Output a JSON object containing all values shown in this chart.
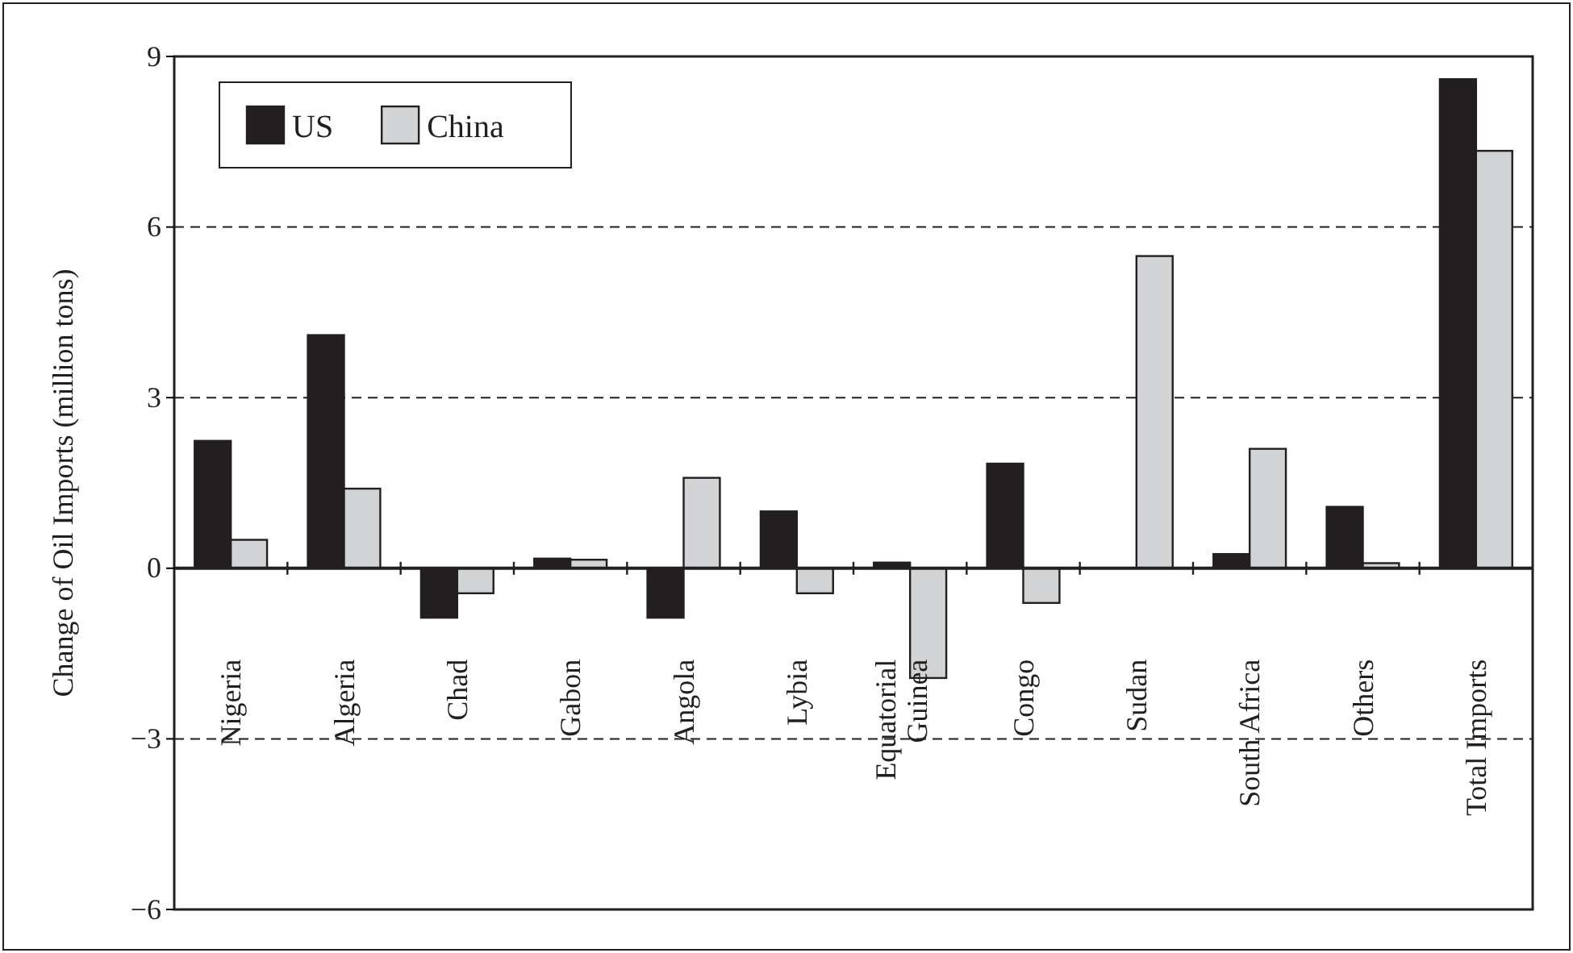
{
  "chart_data": {
    "type": "bar",
    "ylabel": "Change of Oil Imports (million tons)",
    "categories": [
      "Nigeria",
      "Algeria",
      "Chad",
      "Gabon",
      "Angola",
      "Lybia",
      "Equatorial Guinea",
      "Congo",
      "Sudan",
      "South Africa",
      "Others",
      "Total Imports"
    ],
    "series": [
      {
        "name": "US",
        "color": "#231f20",
        "values": [
          2.24,
          4.1,
          -0.87,
          0.17,
          -0.87,
          1.0,
          0.1,
          1.84,
          0,
          0.25,
          1.08,
          8.6
        ]
      },
      {
        "name": "China",
        "color": "#d1d3d4",
        "values": [
          0.5,
          1.4,
          -0.44,
          0.15,
          1.59,
          -0.44,
          -1.93,
          -0.61,
          5.49,
          2.1,
          0.09,
          7.34
        ]
      }
    ],
    "ylim": [
      -6,
      9
    ],
    "yticks": [
      -6,
      -3,
      0,
      3,
      6,
      9
    ],
    "grid": "y",
    "legend": "top left"
  }
}
